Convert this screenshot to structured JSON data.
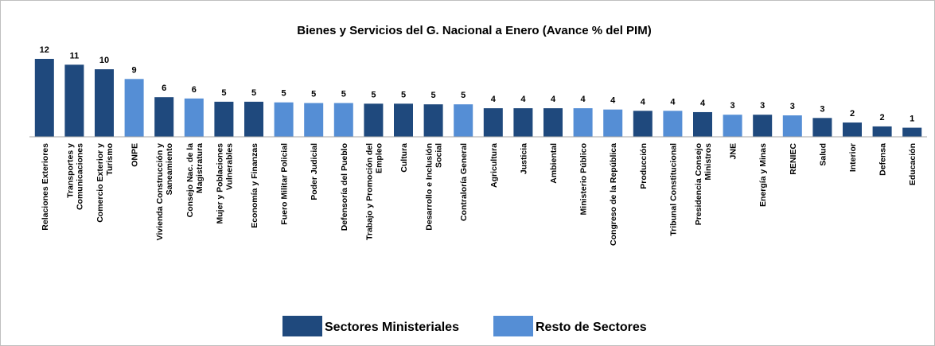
{
  "chart_data": {
    "type": "bar",
    "title": "Bienes y Servicios del G. Nacional a Enero (Avance % del PIM)",
    "categories": [
      "Relaciones Exteriores",
      "Transportes y Comunicaciones",
      "Comercio Exterior y Turismo",
      "ONPE",
      "Vivienda Construcción y Saneamiento",
      "Consejo Nac. de la Magistratura",
      "Mujer y Poblaciones Vulnerables",
      "Economía y Finanzas",
      "Fuero Militar Policial",
      "Poder Judicial",
      "Defensoría del Pueblo",
      "Trabajo y Promoción del Empleo",
      "Cultura",
      "Desarrollo e Inclusión Social",
      "Contraloría General",
      "Agricultura",
      "Justicia",
      "Ambiental",
      "Ministerio Público",
      "Congreso de la República",
      "Producción",
      "Tribunal Constitucional",
      "Presidencia Consejo Ministros",
      "JNE",
      "Energía y Minas",
      "RENIEC",
      "Salud",
      "Interior",
      "Defensa",
      "Educación"
    ],
    "series": [
      {
        "name": "Sectores Ministeriales",
        "color": "#1f497d",
        "values": [
          12.0,
          11.1,
          10.4,
          null,
          6.1,
          null,
          5.4,
          5.4,
          null,
          null,
          null,
          5.1,
          5.1,
          5.0,
          null,
          4.4,
          4.4,
          4.4,
          null,
          null,
          4.0,
          null,
          3.8,
          null,
          3.4,
          null,
          2.9,
          2.2,
          1.6,
          1.4
        ],
        "value_labels": [
          "12",
          "11",
          "10",
          null,
          "6",
          null,
          "5",
          "5",
          null,
          null,
          null,
          "5",
          "5",
          "5",
          null,
          "4",
          "4",
          "4",
          null,
          null,
          "4",
          null,
          "4",
          null,
          "3",
          null,
          "3",
          "2",
          "2",
          "1"
        ]
      },
      {
        "name": "Resto de Sectores",
        "color": "#558ed5",
        "values": [
          null,
          null,
          null,
          8.9,
          null,
          5.9,
          null,
          null,
          5.3,
          5.2,
          5.2,
          null,
          null,
          null,
          5.0,
          null,
          null,
          null,
          4.4,
          4.2,
          null,
          4.0,
          null,
          3.4,
          null,
          3.3,
          null,
          null,
          null,
          null
        ],
        "value_labels": [
          null,
          null,
          null,
          "9",
          null,
          "6",
          null,
          null,
          "5",
          "5",
          "5",
          null,
          null,
          null,
          "5",
          null,
          null,
          null,
          "4",
          "4",
          null,
          "4",
          null,
          "3",
          null,
          "3",
          null,
          null,
          null,
          null
        ]
      }
    ],
    "ylim": [
      0,
      12
    ]
  }
}
